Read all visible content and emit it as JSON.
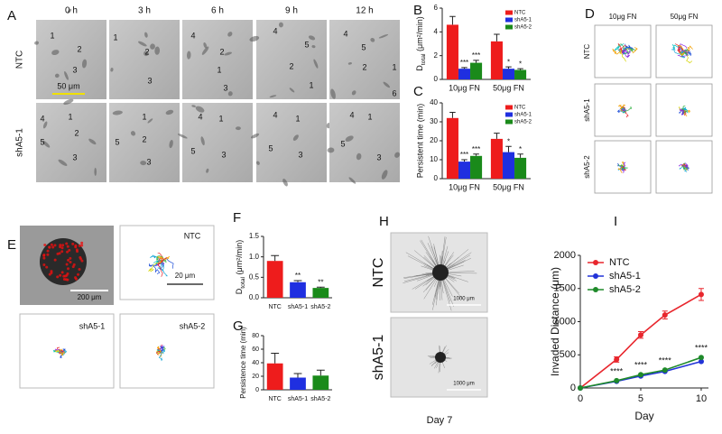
{
  "figure": {
    "panel_letters": [
      "A",
      "B",
      "C",
      "D",
      "E",
      "F",
      "G",
      "H",
      "I"
    ],
    "A": {
      "timepoints": [
        "0 h",
        "3 h",
        "6 h",
        "9 h",
        "12 h"
      ],
      "rows": [
        "NTC",
        "shA5-1"
      ],
      "scale_bar": "50 μm",
      "cell_labels": [
        [
          [
            "1",
            "2",
            "3"
          ],
          [
            "1",
            "2",
            "3"
          ],
          [
            "4",
            "2",
            "1",
            "3"
          ],
          [
            "4",
            "5",
            "2",
            "1"
          ],
          [
            "4",
            "5",
            "2",
            "1",
            "6"
          ]
        ],
        [
          [
            "4",
            "1",
            "5",
            "2",
            "3"
          ],
          [
            "1",
            "5",
            "2",
            "3"
          ],
          [
            "4",
            "1",
            "5",
            "3"
          ],
          [
            "4",
            "1",
            "5",
            "3"
          ],
          [
            "4",
            "1",
            "5",
            "3"
          ]
        ]
      ]
    },
    "D": {
      "columns": [
        "10μg FN",
        "50μg FN"
      ],
      "rows": [
        "NTC",
        "shA5-1",
        "shA5-2"
      ]
    },
    "E": {
      "scale_bars": [
        "200 μm",
        "20 μm"
      ],
      "labels": [
        "NTC",
        "shA5-1",
        "shA5-2"
      ]
    },
    "H": {
      "rows": [
        "NTC",
        "shA5-1"
      ],
      "scale_bars": [
        "1000 μm",
        "1000 μm"
      ],
      "caption": "Day 7"
    }
  },
  "chart_data": [
    {
      "type": "bar",
      "ylabel": {
        "main": "D",
        "sub": "total",
        "rest": " (μm²/min)"
      },
      "categories": [
        "10μg FN",
        "50μg FN"
      ],
      "ylim": [
        0,
        6
      ],
      "yticks": [
        0,
        2,
        4,
        6
      ],
      "legend": "upper right",
      "series": [
        {
          "name": "NTC",
          "color": "#ee1c1c",
          "values": [
            4.6,
            3.2
          ],
          "errors": [
            0.7,
            0.6
          ],
          "annotations": [
            null,
            null
          ]
        },
        {
          "name": "shA5-1",
          "color": "#1f2fe0",
          "values": [
            0.9,
            0.9
          ],
          "errors": [
            0.1,
            0.15
          ],
          "annotations": [
            "***",
            "*"
          ]
        },
        {
          "name": "shA5-2",
          "color": "#1a8a1a",
          "values": [
            1.4,
            0.8
          ],
          "errors": [
            0.2,
            0.1
          ],
          "annotations": [
            "***",
            "*"
          ]
        }
      ]
    },
    {
      "type": "bar",
      "ylabel": "Persistent time (min)",
      "categories": [
        "10μg FN",
        "50μg FN"
      ],
      "ylim": [
        0,
        40
      ],
      "yticks": [
        0,
        10,
        20,
        30,
        40
      ],
      "legend": "upper right",
      "series": [
        {
          "name": "NTC",
          "color": "#ee1c1c",
          "values": [
            32,
            21
          ],
          "errors": [
            3,
            3
          ],
          "annotations": [
            null,
            null
          ]
        },
        {
          "name": "shA5-1",
          "color": "#1f2fe0",
          "values": [
            9,
            14
          ],
          "errors": [
            1,
            3
          ],
          "annotations": [
            "***",
            "*"
          ]
        },
        {
          "name": "shA5-2",
          "color": "#1a8a1a",
          "values": [
            12,
            11
          ],
          "errors": [
            1,
            2
          ],
          "annotations": [
            "***",
            "*"
          ]
        }
      ]
    },
    {
      "type": "bar",
      "ylabel": {
        "main": "D",
        "sub": "total",
        "rest": " (μm²/min)"
      },
      "categories": [
        "NTC",
        "shA5-1",
        "shA5-2"
      ],
      "values": [
        0.9,
        0.38,
        0.24
      ],
      "errors": [
        0.13,
        0.04,
        0.02
      ],
      "colors": [
        "#ee1c1c",
        "#1f2fe0",
        "#1a8a1a"
      ],
      "annotations": [
        null,
        "**",
        "**"
      ],
      "ylim": [
        0,
        1.5
      ],
      "yticks": [
        {
          "value": 0,
          "label": "0.0"
        },
        0.5,
        {
          "value": 1,
          "label": "1.0"
        },
        1.5
      ]
    },
    {
      "type": "bar",
      "ylabel": "Persistence time (min)",
      "categories": [
        "NTC",
        "shA5-1",
        "shA5-2"
      ],
      "values": [
        39,
        18,
        21
      ],
      "errors": [
        15,
        6,
        8
      ],
      "colors": [
        "#ee1c1c",
        "#1f2fe0",
        "#1a8a1a"
      ],
      "ylim": [
        0,
        80
      ],
      "yticks": [
        0,
        20,
        40,
        60,
        80
      ]
    },
    {
      "type": "line",
      "xlabel": "Day",
      "ylabel": "Invaded Distance (μm)",
      "x": [
        0,
        3,
        5,
        7,
        10
      ],
      "xlim": [
        0,
        10.6
      ],
      "xticks": [
        0,
        5,
        10
      ],
      "ylim": [
        0,
        2000
      ],
      "yticks": [
        0,
        500,
        1000,
        1500,
        2000
      ],
      "legend": "upper left",
      "annotations": [
        null,
        "****",
        "****",
        "****",
        "****"
      ],
      "series": [
        {
          "name": "NTC",
          "color": "#e8262d",
          "values": [
            0,
            430,
            800,
            1100,
            1410
          ],
          "errors": [
            0,
            40,
            50,
            60,
            90
          ]
        },
        {
          "name": "shA5-1",
          "color": "#2233d8",
          "values": [
            0,
            100,
            180,
            250,
            400
          ]
        },
        {
          "name": "shA5-2",
          "color": "#1f8a2a",
          "values": [
            0,
            110,
            200,
            270,
            460
          ]
        }
      ]
    }
  ]
}
